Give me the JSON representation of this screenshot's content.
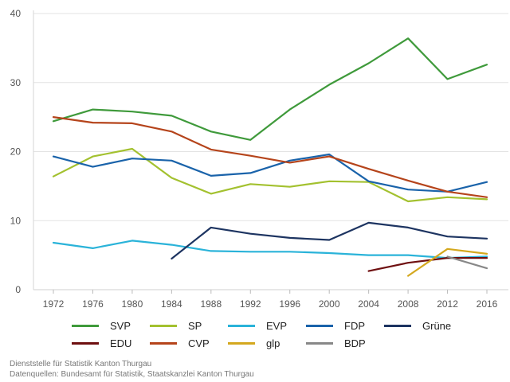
{
  "chart_data": {
    "type": "line",
    "title": "",
    "xlabel": "",
    "ylabel": "",
    "x": [
      1972,
      1976,
      1980,
      1984,
      1988,
      1992,
      1996,
      2000,
      2004,
      2008,
      2012,
      2016
    ],
    "ylim": [
      0,
      40
    ],
    "yticks": [
      0,
      10,
      20,
      30,
      40
    ],
    "grid": true,
    "legend_position": "bottom",
    "series": [
      {
        "name": "SVP",
        "color": "#3f9a3b",
        "values": [
          24.4,
          26.1,
          25.8,
          25.2,
          22.9,
          21.7,
          26.1,
          29.7,
          32.8,
          36.4,
          30.5,
          32.6
        ]
      },
      {
        "name": "SP",
        "color": "#a3c12f",
        "values": [
          16.4,
          19.3,
          20.4,
          16.2,
          13.9,
          15.3,
          14.9,
          15.7,
          15.6,
          12.8,
          13.4,
          13.1
        ]
      },
      {
        "name": "EVP",
        "color": "#2ab3d9",
        "values": [
          6.8,
          6.0,
          7.1,
          6.5,
          5.6,
          5.5,
          5.5,
          5.3,
          5.0,
          5.0,
          4.6,
          4.8
        ]
      },
      {
        "name": "FDP",
        "color": "#1a63aa",
        "values": [
          19.3,
          17.8,
          19.0,
          18.7,
          16.5,
          16.9,
          18.7,
          19.6,
          15.7,
          14.5,
          14.2,
          15.6
        ]
      },
      {
        "name": "Grüne",
        "color": "#1d3461",
        "values": [
          null,
          null,
          null,
          4.5,
          9.0,
          8.1,
          7.5,
          7.2,
          9.7,
          9.0,
          7.7,
          7.4
        ]
      },
      {
        "name": "EDU",
        "color": "#6e0f10",
        "values": [
          null,
          null,
          null,
          null,
          null,
          null,
          null,
          null,
          2.7,
          3.9,
          4.6,
          4.6
        ]
      },
      {
        "name": "CVP",
        "color": "#b5441b",
        "values": [
          25.0,
          24.2,
          24.1,
          22.9,
          20.3,
          19.4,
          18.4,
          19.3,
          17.5,
          15.8,
          14.2,
          13.4
        ]
      },
      {
        "name": "glp",
        "color": "#d4a81e",
        "values": [
          null,
          null,
          null,
          null,
          null,
          null,
          null,
          null,
          null,
          2.0,
          5.9,
          5.2
        ]
      },
      {
        "name": "BDP",
        "color": "#888888",
        "values": [
          null,
          null,
          null,
          null,
          null,
          null,
          null,
          null,
          null,
          null,
          4.8,
          3.1
        ]
      }
    ]
  },
  "footer": {
    "line1": "Dienststelle für Statistik Kanton Thurgau",
    "line2": "Datenquellen: Bundesamt für Statistik, Staatskanzlei Kanton Thurgau"
  }
}
